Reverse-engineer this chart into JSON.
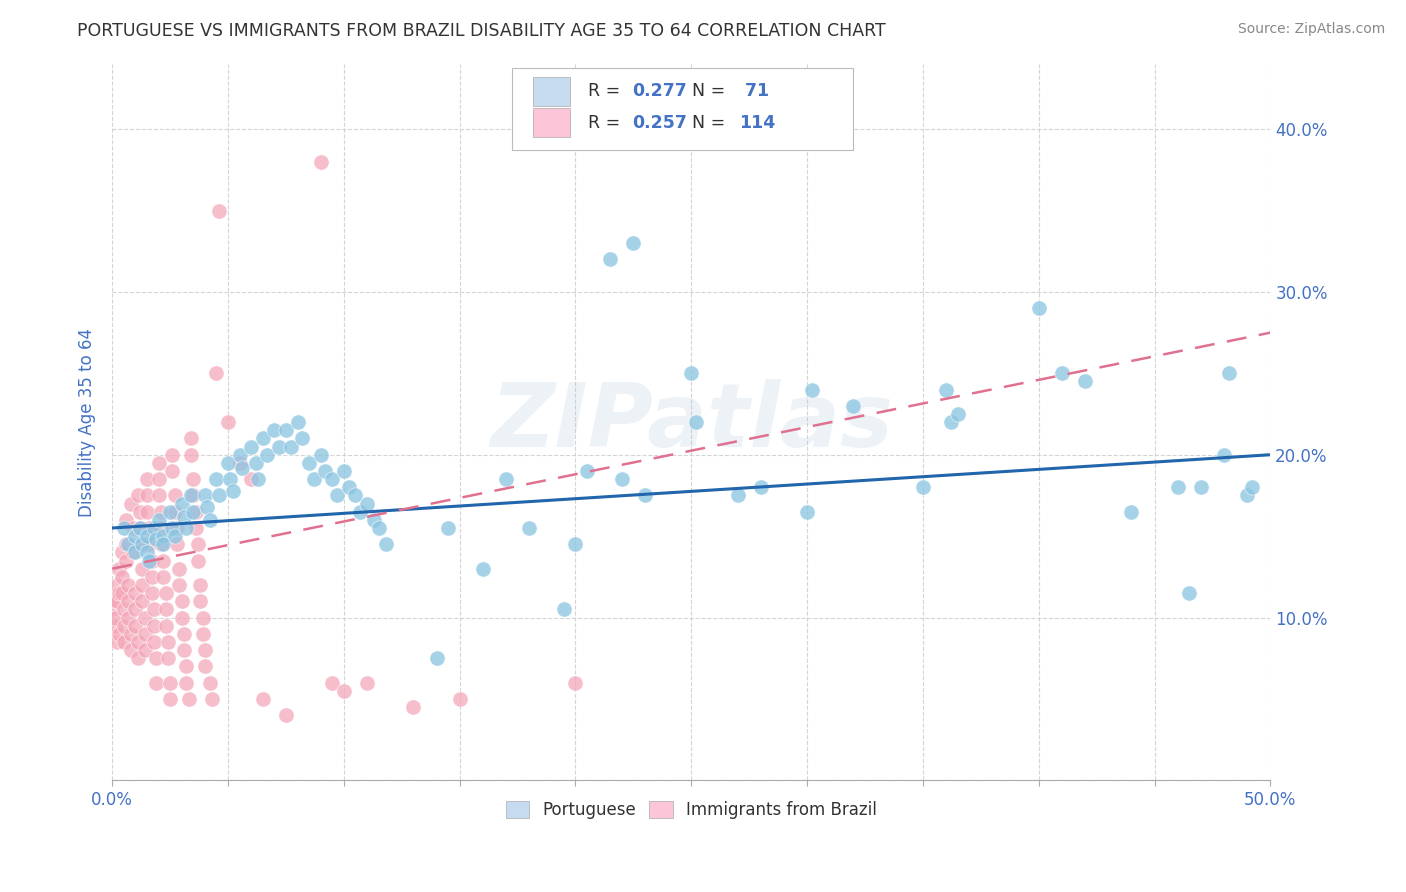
{
  "title": "PORTUGUESE VS IMMIGRANTS FROM BRAZIL DISABILITY AGE 35 TO 64 CORRELATION CHART",
  "source": "Source: ZipAtlas.com",
  "ylabel": "Disability Age 35 to 64",
  "xlim": [
    0.0,
    0.5
  ],
  "ylim": [
    0.0,
    0.44
  ],
  "xticks": [
    0.0,
    0.05,
    0.1,
    0.15,
    0.2,
    0.25,
    0.3,
    0.35,
    0.4,
    0.45,
    0.5
  ],
  "xticklabels_show": [
    "0.0%",
    "",
    "",
    "",
    "",
    "",
    "",
    "",
    "",
    "",
    "50.0%"
  ],
  "yticks": [
    0.0,
    0.1,
    0.2,
    0.3,
    0.4
  ],
  "yticklabels_right": [
    "",
    "10.0%",
    "20.0%",
    "30.0%",
    "40.0%"
  ],
  "watermark": "ZIPatlas",
  "blue_color": "#89c4e1",
  "pink_color": "#f4a7b9",
  "blue_fill": "#c6dbef",
  "pink_fill": "#fcc5d8",
  "trend_blue": "#2166ac",
  "trend_pink": "#e07090",
  "background_color": "#ffffff",
  "grid_color": "#d0d0d0",
  "title_color": "#333333",
  "axis_label_color": "#4472c4",
  "tick_color": "#4472c4",
  "portuguese_points": [
    [
      0.005,
      0.155
    ],
    [
      0.007,
      0.145
    ],
    [
      0.01,
      0.15
    ],
    [
      0.01,
      0.14
    ],
    [
      0.012,
      0.155
    ],
    [
      0.013,
      0.145
    ],
    [
      0.015,
      0.15
    ],
    [
      0.015,
      0.14
    ],
    [
      0.016,
      0.135
    ],
    [
      0.018,
      0.155
    ],
    [
      0.019,
      0.148
    ],
    [
      0.02,
      0.16
    ],
    [
      0.022,
      0.15
    ],
    [
      0.022,
      0.145
    ],
    [
      0.025,
      0.165
    ],
    [
      0.026,
      0.155
    ],
    [
      0.027,
      0.15
    ],
    [
      0.03,
      0.17
    ],
    [
      0.031,
      0.162
    ],
    [
      0.032,
      0.155
    ],
    [
      0.034,
      0.175
    ],
    [
      0.035,
      0.165
    ],
    [
      0.04,
      0.175
    ],
    [
      0.041,
      0.168
    ],
    [
      0.042,
      0.16
    ],
    [
      0.045,
      0.185
    ],
    [
      0.046,
      0.175
    ],
    [
      0.05,
      0.195
    ],
    [
      0.051,
      0.185
    ],
    [
      0.052,
      0.178
    ],
    [
      0.055,
      0.2
    ],
    [
      0.056,
      0.192
    ],
    [
      0.06,
      0.205
    ],
    [
      0.062,
      0.195
    ],
    [
      0.063,
      0.185
    ],
    [
      0.065,
      0.21
    ],
    [
      0.067,
      0.2
    ],
    [
      0.07,
      0.215
    ],
    [
      0.072,
      0.205
    ],
    [
      0.075,
      0.215
    ],
    [
      0.077,
      0.205
    ],
    [
      0.08,
      0.22
    ],
    [
      0.082,
      0.21
    ],
    [
      0.085,
      0.195
    ],
    [
      0.087,
      0.185
    ],
    [
      0.09,
      0.2
    ],
    [
      0.092,
      0.19
    ],
    [
      0.095,
      0.185
    ],
    [
      0.097,
      0.175
    ],
    [
      0.1,
      0.19
    ],
    [
      0.102,
      0.18
    ],
    [
      0.105,
      0.175
    ],
    [
      0.107,
      0.165
    ],
    [
      0.11,
      0.17
    ],
    [
      0.113,
      0.16
    ],
    [
      0.115,
      0.155
    ],
    [
      0.118,
      0.145
    ],
    [
      0.14,
      0.075
    ],
    [
      0.145,
      0.155
    ],
    [
      0.16,
      0.13
    ],
    [
      0.17,
      0.185
    ],
    [
      0.18,
      0.155
    ],
    [
      0.195,
      0.105
    ],
    [
      0.2,
      0.145
    ],
    [
      0.205,
      0.19
    ],
    [
      0.215,
      0.32
    ],
    [
      0.22,
      0.185
    ],
    [
      0.225,
      0.33
    ],
    [
      0.23,
      0.175
    ],
    [
      0.25,
      0.25
    ],
    [
      0.252,
      0.22
    ],
    [
      0.27,
      0.175
    ],
    [
      0.28,
      0.18
    ],
    [
      0.3,
      0.165
    ],
    [
      0.302,
      0.24
    ],
    [
      0.32,
      0.23
    ],
    [
      0.35,
      0.18
    ],
    [
      0.36,
      0.24
    ],
    [
      0.362,
      0.22
    ],
    [
      0.365,
      0.225
    ],
    [
      0.4,
      0.29
    ],
    [
      0.41,
      0.25
    ],
    [
      0.42,
      0.245
    ],
    [
      0.44,
      0.165
    ],
    [
      0.46,
      0.18
    ],
    [
      0.465,
      0.115
    ],
    [
      0.47,
      0.18
    ],
    [
      0.48,
      0.2
    ],
    [
      0.482,
      0.25
    ],
    [
      0.49,
      0.175
    ],
    [
      0.492,
      0.18
    ]
  ],
  "brazil_points": [
    [
      0.0,
      0.105
    ],
    [
      0.001,
      0.095
    ],
    [
      0.001,
      0.1
    ],
    [
      0.001,
      0.11
    ],
    [
      0.002,
      0.085
    ],
    [
      0.002,
      0.11
    ],
    [
      0.002,
      0.12
    ],
    [
      0.003,
      0.115
    ],
    [
      0.003,
      0.09
    ],
    [
      0.003,
      0.13
    ],
    [
      0.004,
      0.14
    ],
    [
      0.004,
      0.125
    ],
    [
      0.004,
      0.115
    ],
    [
      0.005,
      0.105
    ],
    [
      0.005,
      0.095
    ],
    [
      0.005,
      0.085
    ],
    [
      0.006,
      0.16
    ],
    [
      0.006,
      0.145
    ],
    [
      0.006,
      0.135
    ],
    [
      0.007,
      0.12
    ],
    [
      0.007,
      0.11
    ],
    [
      0.007,
      0.1
    ],
    [
      0.008,
      0.09
    ],
    [
      0.008,
      0.08
    ],
    [
      0.008,
      0.17
    ],
    [
      0.009,
      0.155
    ],
    [
      0.009,
      0.14
    ],
    [
      0.01,
      0.115
    ],
    [
      0.01,
      0.105
    ],
    [
      0.01,
      0.095
    ],
    [
      0.011,
      0.085
    ],
    [
      0.011,
      0.075
    ],
    [
      0.011,
      0.175
    ],
    [
      0.012,
      0.165
    ],
    [
      0.012,
      0.155
    ],
    [
      0.012,
      0.145
    ],
    [
      0.013,
      0.13
    ],
    [
      0.013,
      0.12
    ],
    [
      0.013,
      0.11
    ],
    [
      0.014,
      0.1
    ],
    [
      0.014,
      0.09
    ],
    [
      0.014,
      0.08
    ],
    [
      0.015,
      0.185
    ],
    [
      0.015,
      0.175
    ],
    [
      0.015,
      0.165
    ],
    [
      0.016,
      0.155
    ],
    [
      0.016,
      0.145
    ],
    [
      0.017,
      0.135
    ],
    [
      0.017,
      0.125
    ],
    [
      0.017,
      0.115
    ],
    [
      0.018,
      0.105
    ],
    [
      0.018,
      0.095
    ],
    [
      0.018,
      0.085
    ],
    [
      0.019,
      0.075
    ],
    [
      0.019,
      0.06
    ],
    [
      0.02,
      0.195
    ],
    [
      0.02,
      0.185
    ],
    [
      0.02,
      0.175
    ],
    [
      0.021,
      0.165
    ],
    [
      0.021,
      0.155
    ],
    [
      0.021,
      0.145
    ],
    [
      0.022,
      0.135
    ],
    [
      0.022,
      0.125
    ],
    [
      0.023,
      0.115
    ],
    [
      0.023,
      0.105
    ],
    [
      0.023,
      0.095
    ],
    [
      0.024,
      0.085
    ],
    [
      0.024,
      0.075
    ],
    [
      0.025,
      0.06
    ],
    [
      0.025,
      0.05
    ],
    [
      0.026,
      0.2
    ],
    [
      0.026,
      0.19
    ],
    [
      0.027,
      0.175
    ],
    [
      0.027,
      0.165
    ],
    [
      0.028,
      0.155
    ],
    [
      0.028,
      0.145
    ],
    [
      0.029,
      0.13
    ],
    [
      0.029,
      0.12
    ],
    [
      0.03,
      0.11
    ],
    [
      0.03,
      0.1
    ],
    [
      0.031,
      0.09
    ],
    [
      0.031,
      0.08
    ],
    [
      0.032,
      0.07
    ],
    [
      0.032,
      0.06
    ],
    [
      0.033,
      0.05
    ],
    [
      0.034,
      0.21
    ],
    [
      0.034,
      0.2
    ],
    [
      0.035,
      0.185
    ],
    [
      0.035,
      0.175
    ],
    [
      0.036,
      0.165
    ],
    [
      0.036,
      0.155
    ],
    [
      0.037,
      0.145
    ],
    [
      0.037,
      0.135
    ],
    [
      0.038,
      0.12
    ],
    [
      0.038,
      0.11
    ],
    [
      0.039,
      0.1
    ],
    [
      0.039,
      0.09
    ],
    [
      0.04,
      0.08
    ],
    [
      0.04,
      0.07
    ],
    [
      0.042,
      0.06
    ],
    [
      0.043,
      0.05
    ],
    [
      0.045,
      0.25
    ],
    [
      0.046,
      0.35
    ],
    [
      0.05,
      0.22
    ],
    [
      0.055,
      0.195
    ],
    [
      0.06,
      0.185
    ],
    [
      0.065,
      0.05
    ],
    [
      0.075,
      0.04
    ],
    [
      0.09,
      0.38
    ],
    [
      0.095,
      0.06
    ],
    [
      0.1,
      0.055
    ],
    [
      0.11,
      0.06
    ],
    [
      0.13,
      0.045
    ],
    [
      0.15,
      0.05
    ],
    [
      0.2,
      0.06
    ]
  ]
}
